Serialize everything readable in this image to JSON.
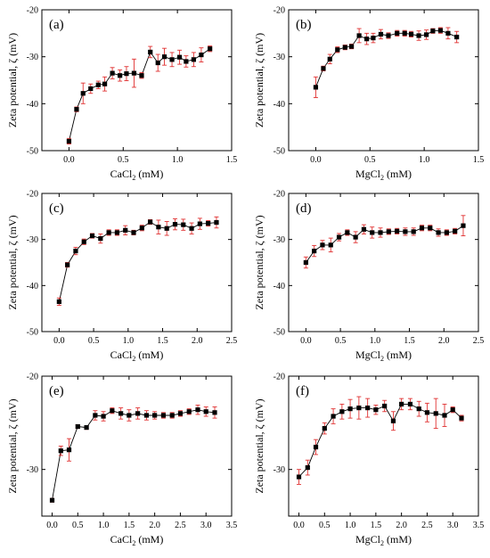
{
  "chart_data": [
    {
      "type": "scatter",
      "panel_label": "(a)",
      "xlabel_main": "CaCl",
      "xlabel_sub": "2",
      "xlabel_unit": " (mM)",
      "ylabel": "Zeta potential, ζ (mV)",
      "xlim": [
        -0.25,
        1.5
      ],
      "ylim": [
        -50,
        -20
      ],
      "xticks": [
        0.0,
        0.5,
        1.0,
        1.5
      ],
      "xtick_labels": [
        "0.0",
        "0.5",
        "1.0",
        "1.5"
      ],
      "yticks": [
        -50,
        -40,
        -30,
        -20
      ],
      "ytick_labels": [
        "-50",
        "-40",
        "-30",
        "-20"
      ],
      "marker_color": "#000000",
      "errorbar_color": "#e03030",
      "x": [
        0.0,
        0.07,
        0.13,
        0.2,
        0.27,
        0.33,
        0.4,
        0.47,
        0.53,
        0.6,
        0.67,
        0.75,
        0.82,
        0.88,
        0.95,
        1.02,
        1.08,
        1.15,
        1.22,
        1.3
      ],
      "y": [
        -48.0,
        -41.2,
        -37.8,
        -36.8,
        -36.0,
        -35.8,
        -33.5,
        -34.0,
        -33.6,
        -33.5,
        -34.0,
        -29.0,
        -31.3,
        -30.0,
        -30.6,
        -30.1,
        -31.0,
        -30.6,
        -29.6,
        -28.3
      ],
      "err": [
        0.6,
        0.5,
        2.2,
        1.0,
        0.8,
        1.5,
        1.2,
        1.2,
        1.5,
        3.0,
        0.6,
        1.2,
        1.8,
        1.8,
        1.5,
        1.5,
        1.2,
        1.5,
        1.5,
        0.6
      ]
    },
    {
      "type": "scatter",
      "panel_label": "(b)",
      "xlabel_main": "MgCl",
      "xlabel_sub": "2",
      "xlabel_unit": " (mM)",
      "ylabel": "Zeta potential, ζ (mV)",
      "xlim": [
        -0.25,
        1.5
      ],
      "ylim": [
        -50,
        -20
      ],
      "xticks": [
        0.0,
        0.5,
        1.0,
        1.5
      ],
      "xtick_labels": [
        "0.0",
        "0.5",
        "1.0",
        "1.5"
      ],
      "yticks": [
        -50,
        -40,
        -30,
        -20
      ],
      "ytick_labels": [
        "-50",
        "-40",
        "-30",
        "-20"
      ],
      "marker_color": "#000000",
      "errorbar_color": "#e03030",
      "x": [
        0.0,
        0.07,
        0.13,
        0.2,
        0.27,
        0.33,
        0.4,
        0.47,
        0.53,
        0.6,
        0.67,
        0.75,
        0.82,
        0.88,
        0.95,
        1.02,
        1.08,
        1.15,
        1.22,
        1.3
      ],
      "y": [
        -36.5,
        -32.5,
        -30.5,
        -28.5,
        -28.0,
        -27.8,
        -25.5,
        -26.2,
        -26.0,
        -25.2,
        -25.5,
        -25.0,
        -25.0,
        -25.2,
        -25.5,
        -25.3,
        -24.5,
        -24.4,
        -25.0,
        -25.8
      ],
      "err": [
        2.2,
        0.5,
        1.0,
        0.6,
        0.5,
        0.5,
        1.5,
        1.2,
        1.0,
        1.0,
        0.6,
        0.6,
        0.6,
        0.6,
        1.0,
        1.0,
        0.5,
        0.6,
        1.2,
        1.2
      ]
    },
    {
      "type": "scatter",
      "panel_label": "(c)",
      "xlabel_main": "CaCl",
      "xlabel_sub": "2",
      "xlabel_unit": " (mM)",
      "ylabel": "Zeta potential, ζ (mV)",
      "xlim": [
        -0.25,
        2.5
      ],
      "ylim": [
        -50,
        -20
      ],
      "xticks": [
        0.0,
        0.5,
        1.0,
        1.5,
        2.0,
        2.5
      ],
      "xtick_labels": [
        "0.0",
        "0.5",
        "1.0",
        "1.5",
        "2.0",
        "2.5"
      ],
      "yticks": [
        -50,
        -40,
        -30,
        -20
      ],
      "ytick_labels": [
        "-50",
        "-40",
        "-30",
        "-20"
      ],
      "marker_color": "#000000",
      "errorbar_color": "#e03030",
      "x": [
        0.0,
        0.12,
        0.24,
        0.36,
        0.48,
        0.6,
        0.72,
        0.84,
        0.96,
        1.08,
        1.2,
        1.32,
        1.44,
        1.56,
        1.68,
        1.8,
        1.92,
        2.04,
        2.16,
        2.28
      ],
      "y": [
        -43.5,
        -35.5,
        -32.5,
        -30.5,
        -29.2,
        -29.8,
        -28.5,
        -28.5,
        -28.0,
        -28.5,
        -27.5,
        -26.2,
        -27.3,
        -27.6,
        -26.7,
        -26.8,
        -27.6,
        -26.6,
        -26.5,
        -26.3
      ],
      "err": [
        0.8,
        0.5,
        0.8,
        0.6,
        0.5,
        1.0,
        0.6,
        0.6,
        1.0,
        0.5,
        0.6,
        0.5,
        1.5,
        1.5,
        1.2,
        1.2,
        1.2,
        1.2,
        0.6,
        1.2
      ]
    },
    {
      "type": "scatter",
      "panel_label": "(d)",
      "xlabel_main": "MgCl",
      "xlabel_sub": "2",
      "xlabel_unit": " (mM)",
      "ylabel": "Zeta potential, ζ (mV)",
      "xlim": [
        -0.25,
        2.5
      ],
      "ylim": [
        -50,
        -20
      ],
      "xticks": [
        0.0,
        0.5,
        1.0,
        1.5,
        2.0,
        2.5
      ],
      "xtick_labels": [
        "0.0",
        "0.5",
        "1.0",
        "1.5",
        "2.0",
        "2.5"
      ],
      "yticks": [
        -50,
        -40,
        -30,
        -20
      ],
      "ytick_labels": [
        "-50",
        "-40",
        "-30",
        "-20"
      ],
      "marker_color": "#000000",
      "errorbar_color": "#e03030",
      "x": [
        0.0,
        0.12,
        0.24,
        0.36,
        0.48,
        0.6,
        0.72,
        0.84,
        0.96,
        1.08,
        1.2,
        1.32,
        1.44,
        1.56,
        1.68,
        1.8,
        1.92,
        2.04,
        2.16,
        2.28
      ],
      "y": [
        -35.0,
        -32.5,
        -31.2,
        -31.2,
        -29.5,
        -28.5,
        -29.5,
        -27.8,
        -28.5,
        -28.5,
        -28.3,
        -28.2,
        -28.3,
        -28.3,
        -27.5,
        -27.5,
        -28.5,
        -28.5,
        -28.2,
        -27.0
      ],
      "err": [
        1.2,
        1.2,
        1.0,
        1.5,
        0.8,
        0.6,
        1.2,
        1.0,
        1.2,
        1.0,
        0.6,
        0.6,
        0.8,
        0.8,
        0.6,
        0.6,
        0.8,
        0.6,
        0.6,
        2.2
      ]
    },
    {
      "type": "scatter",
      "panel_label": "(e)",
      "xlabel_main": "CaCl",
      "xlabel_sub": "2",
      "xlabel_unit": " (mM)",
      "ylabel": "Zeta potential, ζ (mV)",
      "xlim": [
        -0.2,
        3.5
      ],
      "ylim": [
        -35,
        -20
      ],
      "xticks": [
        0.0,
        0.5,
        1.0,
        1.5,
        2.0,
        2.5,
        3.0,
        3.5
      ],
      "xtick_labels": [
        "0.0",
        "0.5",
        "1.0",
        "1.5",
        "2.0",
        "2.5",
        "3.0",
        "3.5"
      ],
      "yticks": [
        -30,
        -20
      ],
      "ytick_labels": [
        "-30",
        "-20"
      ],
      "marker_color": "#000000",
      "errorbar_color": "#e03030",
      "x": [
        0.0,
        0.17,
        0.33,
        0.5,
        0.67,
        0.84,
        1.0,
        1.17,
        1.34,
        1.5,
        1.67,
        1.84,
        2.0,
        2.17,
        2.34,
        2.5,
        2.67,
        2.84,
        3.0,
        3.17
      ],
      "y": [
        -33.3,
        -28.0,
        -27.9,
        -25.4,
        -25.5,
        -24.2,
        -24.3,
        -23.7,
        -24.0,
        -24.2,
        -24.0,
        -24.2,
        -24.2,
        -24.2,
        -24.2,
        -24.0,
        -23.8,
        -23.6,
        -23.8,
        -23.9
      ],
      "err": [
        0.2,
        0.5,
        1.2,
        0.2,
        0.2,
        0.5,
        0.5,
        0.3,
        0.6,
        0.6,
        0.6,
        0.5,
        0.4,
        0.3,
        0.3,
        0.3,
        0.3,
        0.5,
        0.5,
        0.6
      ]
    },
    {
      "type": "scatter",
      "panel_label": "(f)",
      "xlabel_main": "MgCl",
      "xlabel_sub": "2",
      "xlabel_unit": " (mM)",
      "ylabel": "Zeta potential, ζ (mV)",
      "xlim": [
        -0.2,
        3.5
      ],
      "ylim": [
        -35,
        -20
      ],
      "xticks": [
        0.0,
        0.5,
        1.0,
        1.5,
        2.0,
        2.5,
        3.0,
        3.5
      ],
      "xtick_labels": [
        "0.0",
        "0.5",
        "1.0",
        "1.5",
        "2.0",
        "2.5",
        "3.0",
        "3.5"
      ],
      "yticks": [
        -30,
        -20
      ],
      "ytick_labels": [
        "-30",
        "-20"
      ],
      "marker_color": "#000000",
      "errorbar_color": "#e03030",
      "x": [
        0.0,
        0.17,
        0.33,
        0.5,
        0.67,
        0.84,
        1.0,
        1.17,
        1.34,
        1.5,
        1.67,
        1.84,
        2.0,
        2.17,
        2.34,
        2.5,
        2.67,
        2.84,
        3.0,
        3.17
      ],
      "y": [
        -30.8,
        -29.8,
        -27.6,
        -25.6,
        -24.3,
        -23.8,
        -23.5,
        -23.4,
        -23.4,
        -23.6,
        -23.2,
        -24.8,
        -23.0,
        -23.0,
        -23.5,
        -23.9,
        -24.0,
        -24.2,
        -23.6,
        -24.5
      ],
      "err": [
        0.8,
        0.8,
        0.8,
        0.6,
        0.8,
        0.8,
        1.0,
        1.2,
        1.0,
        0.5,
        0.6,
        1.0,
        0.6,
        0.6,
        0.8,
        1.0,
        1.6,
        1.2,
        0.3,
        0.3
      ]
    }
  ]
}
